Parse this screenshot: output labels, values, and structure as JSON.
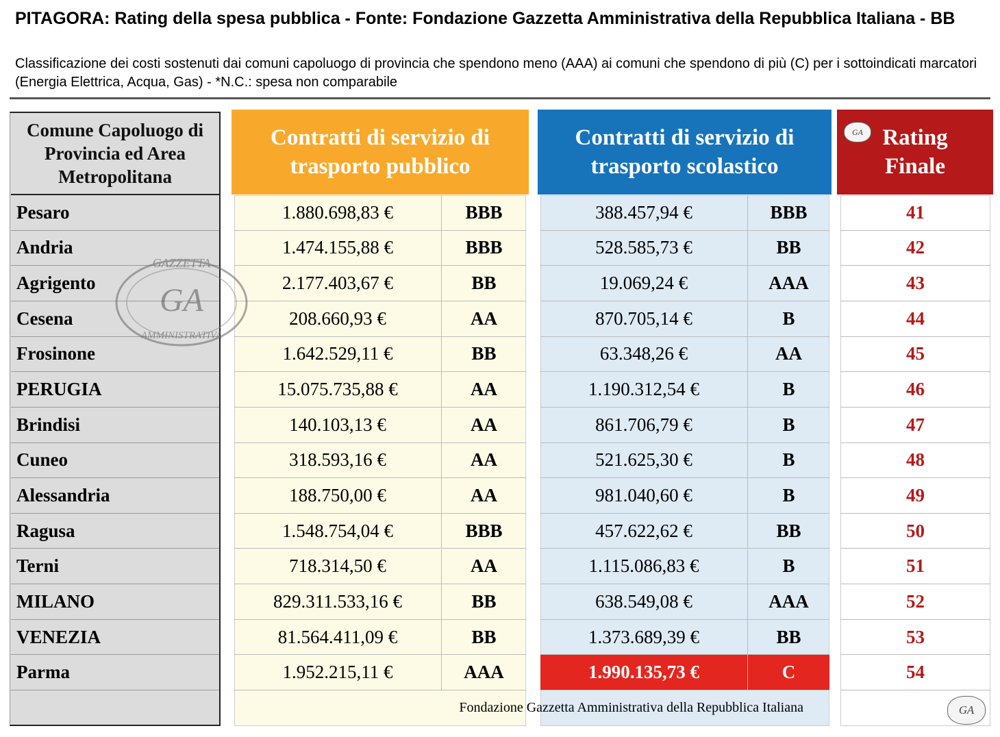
{
  "header": {
    "title": "PITAGORA: Rating della spesa pubblica - Fonte: Fondazione Gazzetta Amministrativa della Repubblica Italiana - BB",
    "subtitle": "Classificazione dei costi sostenuti dai comuni capoluogo di provincia che spendono meno (AAA) ai comuni che spendono di più (C) per i sottoindicati marcatori (Energia Elettrica, Acqua, Gas) - *N.C.: spesa non comparabile"
  },
  "table": {
    "columns": [
      "Comune Capoluogo di Provincia ed Area Metropolitana",
      "Contratti di servizio di trasporto pubblico",
      "Contratti di servizio di trasporto scolastico",
      "Rating Finale"
    ],
    "rows": [
      {
        "city": "Pesaro",
        "public": {
          "amount": "1.880.698,83 €",
          "rating": "BBB"
        },
        "school": {
          "amount": "388.457,94 €",
          "rating": "BBB"
        },
        "final": 41
      },
      {
        "city": "Andria",
        "public": {
          "amount": "1.474.155,88 €",
          "rating": "BBB"
        },
        "school": {
          "amount": "528.585,73 €",
          "rating": "BB"
        },
        "final": 42
      },
      {
        "city": "Agrigento",
        "public": {
          "amount": "2.177.403,67 €",
          "rating": "BB"
        },
        "school": {
          "amount": "19.069,24 €",
          "rating": "AAA"
        },
        "final": 43
      },
      {
        "city": "Cesena",
        "public": {
          "amount": "208.660,93 €",
          "rating": "AA"
        },
        "school": {
          "amount": "870.705,14 €",
          "rating": "B"
        },
        "final": 44
      },
      {
        "city": "Frosinone",
        "public": {
          "amount": "1.642.529,11 €",
          "rating": "BB"
        },
        "school": {
          "amount": "63.348,26 €",
          "rating": "AA"
        },
        "final": 45
      },
      {
        "city": "PERUGIA",
        "public": {
          "amount": "15.075.735,88 €",
          "rating": "AA"
        },
        "school": {
          "amount": "1.190.312,54 €",
          "rating": "B"
        },
        "final": 46
      },
      {
        "city": "Brindisi",
        "public": {
          "amount": "140.103,13 €",
          "rating": "AA"
        },
        "school": {
          "amount": "861.706,79 €",
          "rating": "B"
        },
        "final": 47
      },
      {
        "city": "Cuneo",
        "public": {
          "amount": "318.593,16 €",
          "rating": "AA"
        },
        "school": {
          "amount": "521.625,30 €",
          "rating": "B"
        },
        "final": 48
      },
      {
        "city": "Alessandria",
        "public": {
          "amount": "188.750,00 €",
          "rating": "AA"
        },
        "school": {
          "amount": "981.040,60 €",
          "rating": "B"
        },
        "final": 49
      },
      {
        "city": "Ragusa",
        "public": {
          "amount": "1.548.754,04 €",
          "rating": "BBB"
        },
        "school": {
          "amount": "457.622,62 €",
          "rating": "BB"
        },
        "final": 50
      },
      {
        "city": "Terni",
        "public": {
          "amount": "718.314,50 €",
          "rating": "AA"
        },
        "school": {
          "amount": "1.115.086,83 €",
          "rating": "B"
        },
        "final": 51
      },
      {
        "city": "MILANO",
        "public": {
          "amount": "829.311.533,16 €",
          "rating": "BB"
        },
        "school": {
          "amount": "638.549,08 €",
          "rating": "AAA"
        },
        "final": 52
      },
      {
        "city": "VENEZIA",
        "public": {
          "amount": "81.564.411,09 €",
          "rating": "BB"
        },
        "school": {
          "amount": "1.373.689,39 €",
          "rating": "BB"
        },
        "final": 53
      },
      {
        "city": "Parma",
        "public": {
          "amount": "1.952.215,11 €",
          "rating": "AAA"
        },
        "school": {
          "amount": "1.990.135,73 €",
          "rating": "C",
          "color": "#e3261f"
        },
        "final": 54
      }
    ],
    "footer": "Fondazione Gazzetta Amministrativa della Repubblica Italiana"
  },
  "watermark": {
    "top": "GAZZETTA",
    "center": "GA",
    "bottom": "AMMINISTRATIVA"
  }
}
